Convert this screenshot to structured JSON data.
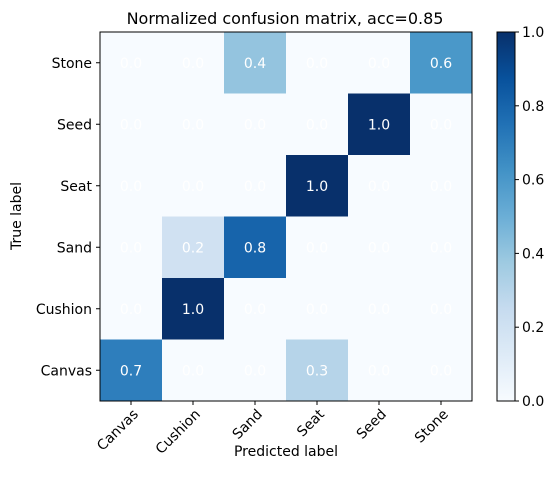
{
  "chart_data": {
    "type": "heatmap",
    "title": "Normalized confusion matrix, acc=0.85",
    "xlabel": "Predicted label",
    "ylabel": "True label",
    "x_categories": [
      "Canvas",
      "Cushion",
      "Sand",
      "Seat",
      "Seed",
      "Stone"
    ],
    "y_categories": [
      "Stone",
      "Seed",
      "Seat",
      "Sand",
      "Cushion",
      "Canvas"
    ],
    "values": [
      [
        0.0,
        0.0,
        0.4,
        0.0,
        0.0,
        0.6
      ],
      [
        0.0,
        0.0,
        0.0,
        0.0,
        1.0,
        0.0
      ],
      [
        0.0,
        0.0,
        0.0,
        1.0,
        0.0,
        0.0
      ],
      [
        0.0,
        0.2,
        0.8,
        0.0,
        0.0,
        0.0
      ],
      [
        0.0,
        1.0,
        0.0,
        0.0,
        0.0,
        0.0
      ],
      [
        0.7,
        0.0,
        0.0,
        0.3,
        0.0,
        0.0
      ]
    ],
    "value_range": [
      0.0,
      1.0
    ],
    "colormap": "Blues",
    "colorbar_ticks": [
      "0.0",
      "0.2",
      "0.4",
      "0.6",
      "0.8",
      "1.0"
    ],
    "colors": {
      "low": "#f7fbff",
      "high": "#08306b",
      "cell_text": "#ffffff"
    }
  }
}
